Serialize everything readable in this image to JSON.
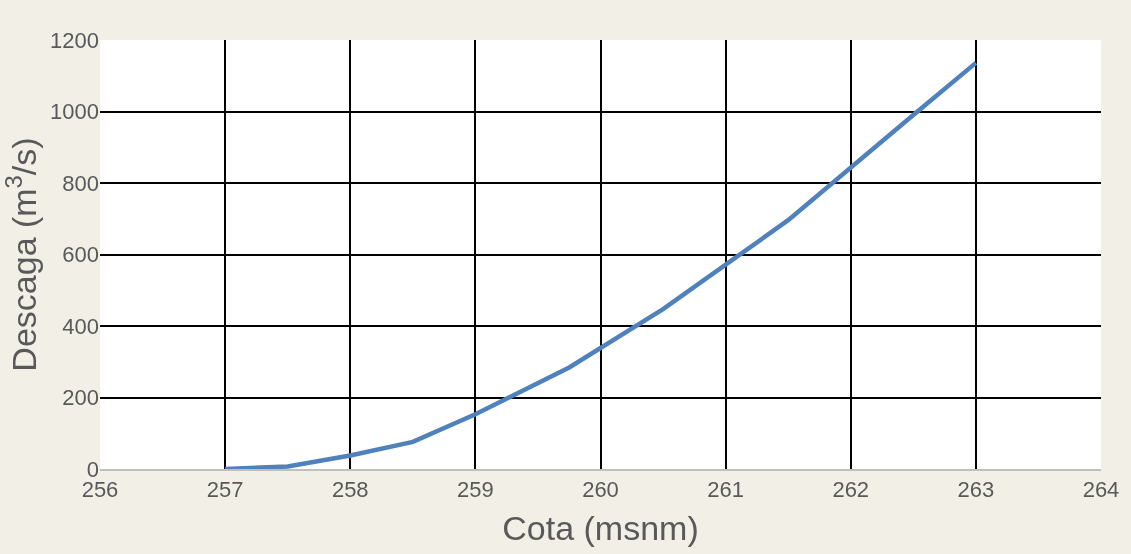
{
  "chart_data": {
    "type": "line",
    "xlabel": "Cota (msnm)",
    "ylabel": "Descaga (m$^{3}$/s)",
    "x": [
      257,
      257.5,
      258,
      258.5,
      259,
      259.75,
      260.5,
      261.5,
      262.5,
      263
    ],
    "series": [
      {
        "color": "#4f81bd",
        "values": [
          0,
          7,
          38,
          76,
          153,
          284,
          447,
          696,
          990,
          1136
        ]
      }
    ],
    "xlim": [
      256,
      264
    ],
    "xticks": [
      256,
      257,
      258,
      259,
      260,
      261,
      262,
      263,
      264
    ],
    "ylim": [
      0,
      1200
    ],
    "yticks": [
      0,
      200,
      400,
      600,
      800,
      1000,
      1200
    ],
    "grid": true,
    "marker": "none",
    "line_style": "solid"
  }
}
